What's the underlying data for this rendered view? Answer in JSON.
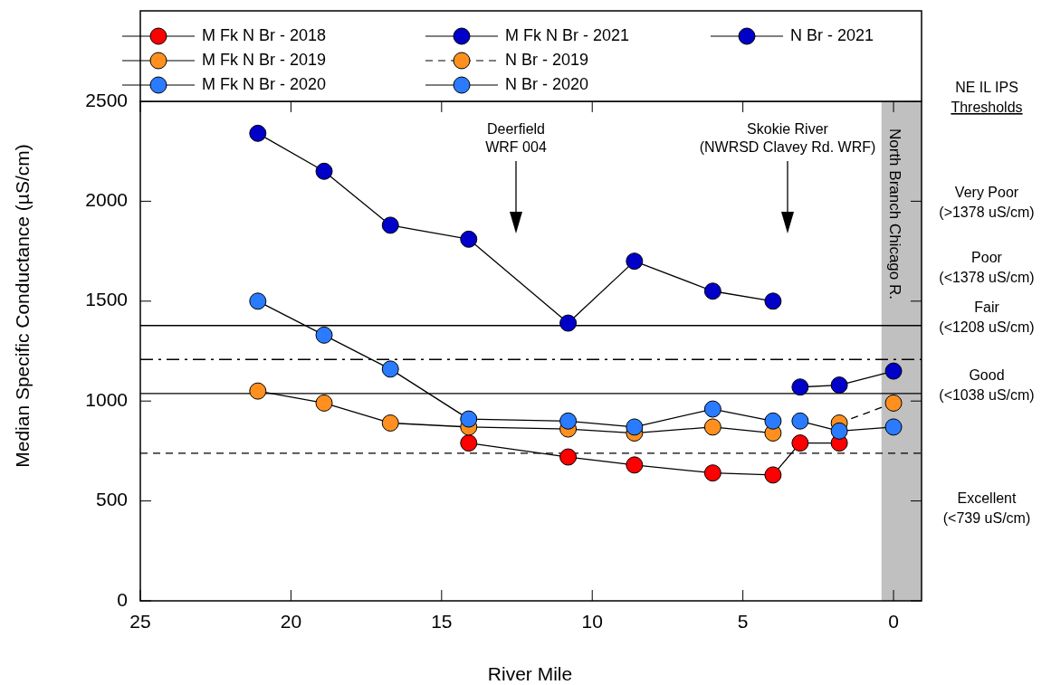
{
  "chart_data": {
    "type": "line",
    "xlabel": "River Mile",
    "ylabel": "Median Specific Conductance (µS/cm)",
    "xlim": [
      25,
      -0.93
    ],
    "xticks": [
      25,
      20,
      15,
      10,
      5,
      0
    ],
    "ylim": [
      0,
      2500
    ],
    "yticks": [
      0,
      500,
      1000,
      1500,
      2000,
      2500
    ],
    "grid": false,
    "legend": "top",
    "marker": "circle",
    "line_style": "solid",
    "series": [
      {
        "name": "M Fk N Br - 2018",
        "color": "#ff0000",
        "x": [
          14.1,
          10.8,
          8.6,
          6.0,
          4.0,
          3.1,
          1.8
        ],
        "values": [
          790,
          720,
          680,
          640,
          630,
          790,
          790
        ]
      },
      {
        "name": "M Fk N Br - 2019",
        "color": "#ff9020",
        "x": [
          21.1,
          18.9,
          16.7,
          14.1,
          10.8,
          8.6,
          6.0,
          4.0
        ],
        "values": [
          1050,
          990,
          890,
          870,
          860,
          840,
          870,
          840
        ]
      },
      {
        "name": "M Fk N Br - 2020",
        "color": "#2a7bff",
        "x": [
          21.1,
          18.9,
          16.7,
          14.1,
          10.8,
          8.6,
          6.0,
          4.0
        ],
        "values": [
          1500,
          1330,
          1160,
          910,
          900,
          870,
          960,
          900
        ]
      },
      {
        "name": "M Fk N Br - 2021",
        "color": "#0000c8",
        "x": [
          21.1,
          18.9,
          16.7,
          14.1,
          10.8,
          8.6,
          6.0,
          4.0
        ],
        "values": [
          2340,
          2150,
          1880,
          1810,
          1390,
          1700,
          1550,
          1500
        ]
      },
      {
        "name": "N Br - 2019",
        "color": "#ff9020",
        "line_style": "dashed",
        "x": [
          1.8,
          0
        ],
        "values": [
          890,
          990
        ]
      },
      {
        "name": "N Br - 2020",
        "color": "#2a7bff",
        "x": [
          3.1,
          1.8,
          0
        ],
        "values": [
          900,
          850,
          870
        ]
      },
      {
        "name": "N Br - 2021",
        "color": "#0000c8",
        "x": [
          3.1,
          1.8,
          0
        ],
        "values": [
          1070,
          1080,
          1150
        ]
      }
    ],
    "ref_lines": [
      {
        "axis": "y",
        "value": 1378,
        "line_style": "solid"
      },
      {
        "axis": "y",
        "value": 1208,
        "line_style": "dashdot"
      },
      {
        "axis": "y",
        "value": 1038,
        "line_style": "solid"
      },
      {
        "axis": "y",
        "value": 739,
        "line_style": "dashed"
      }
    ],
    "bands": [
      {
        "axis": "x",
        "from": 0.4,
        "to": -0.93,
        "label": "North Branch Chicago R.",
        "color": "#c0c0c0"
      }
    ],
    "annotations": [
      "Deerfield\nWRF 004",
      "Skokie River\n(NWRSD Clavey Rd. WRF)",
      "NE IL IPS\nThresholds",
      "Very Poor\n(>1378 uS/cm)",
      "Poor\n(<1378 uS/cm)",
      "Fair\n(<1208 uS/cm)",
      "Good\n(<1038 uS/cm)",
      "Excellent\n(<739 uS/cm)"
    ]
  }
}
